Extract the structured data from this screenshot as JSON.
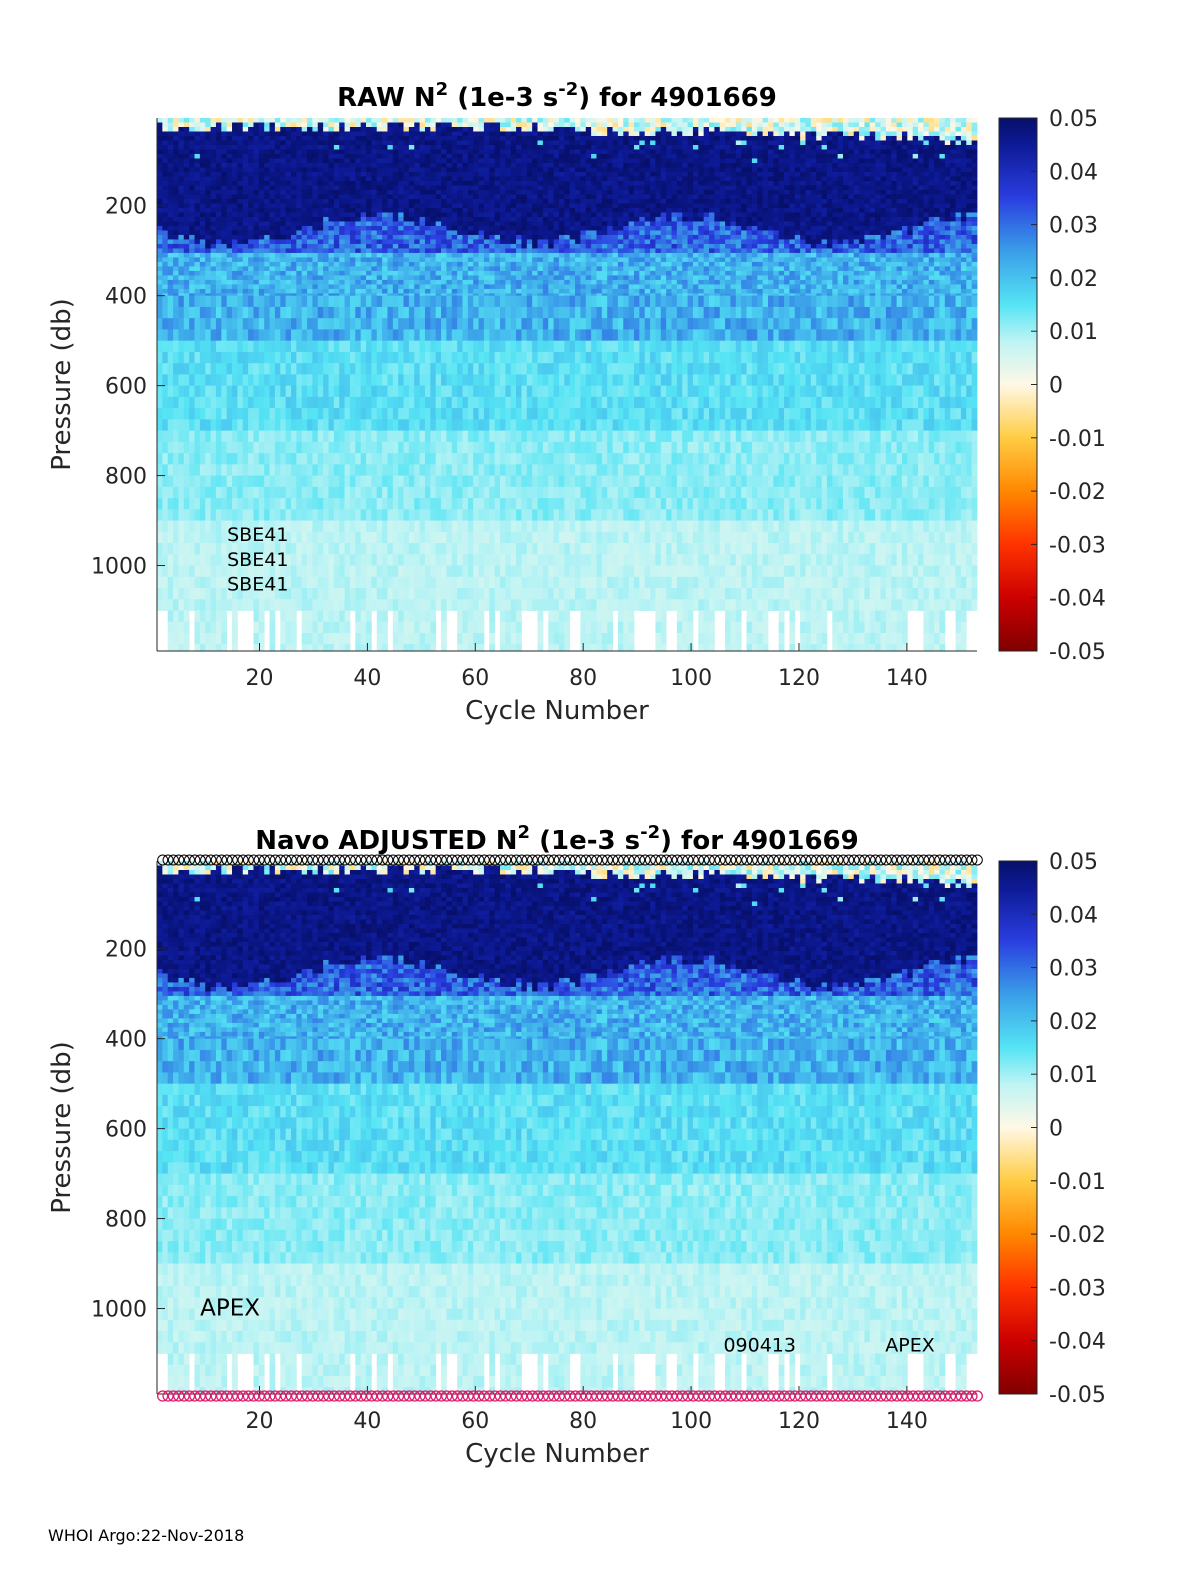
{
  "footer": "WHOI Argo:22-Nov-2018",
  "chart_data": [
    {
      "type": "heatmap",
      "title_parts": [
        "RAW N",
        "2",
        " (1e-3 s",
        "-2",
        ") for 4901669"
      ],
      "xlabel": "Cycle Number",
      "ylabel": "Pressure (db)",
      "xlim": [
        1,
        153
      ],
      "ylim": [
        1190,
        5
      ],
      "y_reversed": true,
      "xticks": [
        20,
        40,
        60,
        80,
        100,
        120,
        140
      ],
      "yticks": [
        200,
        400,
        600,
        800,
        1000
      ],
      "colorbar": {
        "ticks": [
          "0.05",
          "0.04",
          "0.03",
          "0.02",
          "0.01",
          "0",
          "-0.01",
          "-0.02",
          "-0.03",
          "-0.04",
          "-0.05"
        ],
        "range": [
          -0.05,
          0.05
        ]
      },
      "annotations": [
        {
          "text": "SBE41",
          "x": 14,
          "y": 930,
          "size": "small"
        },
        {
          "text": "SBE41",
          "x": 14,
          "y": 985,
          "size": "small"
        },
        {
          "text": "SBE41",
          "x": 14,
          "y": 1040,
          "size": "small"
        }
      ],
      "markers": {
        "top": false,
        "bottom": false
      }
    },
    {
      "type": "heatmap",
      "title_parts": [
        "Navo  ADJUSTED N",
        "2",
        " (1e-3 s",
        "-2",
        ") for 4901669"
      ],
      "xlabel": "Cycle Number",
      "ylabel": "Pressure (db)",
      "xlim": [
        1,
        153
      ],
      "ylim": [
        1190,
        5
      ],
      "y_reversed": true,
      "xticks": [
        20,
        40,
        60,
        80,
        100,
        120,
        140
      ],
      "yticks": [
        200,
        400,
        600,
        800,
        1000
      ],
      "colorbar": {
        "ticks": [
          "0.05",
          "0.04",
          "0.03",
          "0.02",
          "0.01",
          "0",
          "-0.01",
          "-0.02",
          "-0.03",
          "-0.04",
          "-0.05"
        ],
        "range": [
          -0.05,
          0.05
        ]
      },
      "annotations": [
        {
          "text": "APEX",
          "x": 9,
          "y": 1000,
          "size": "large"
        },
        {
          "text": "090413",
          "x": 106,
          "y": 1080,
          "size": "small"
        },
        {
          "text": "APEX",
          "x": 136,
          "y": 1080,
          "size": "small"
        }
      ],
      "markers": {
        "top": true,
        "bottom": true,
        "top_color": "#000000",
        "bottom_color": "#e0186c"
      }
    }
  ]
}
